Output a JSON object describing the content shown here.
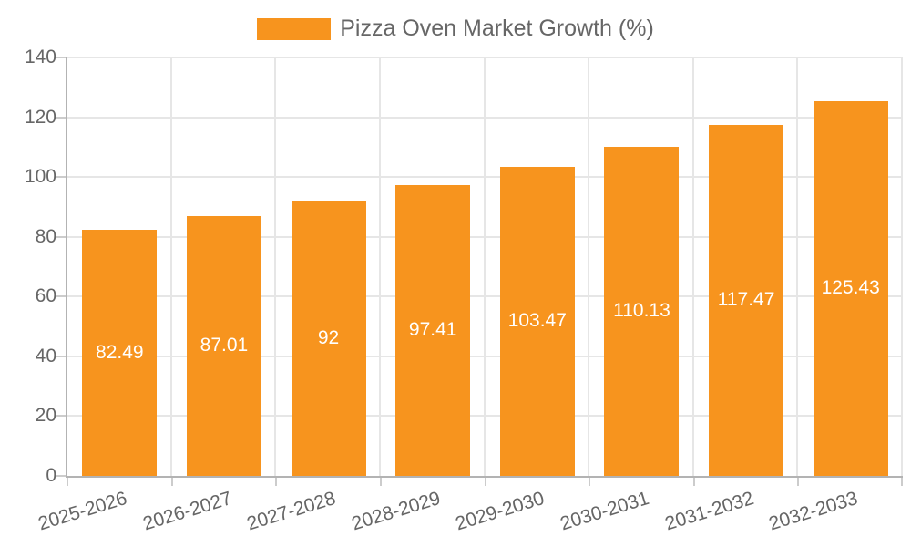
{
  "chart_data": {
    "type": "bar",
    "title": "Pizza Oven Market Growth (%)",
    "categories": [
      "2025-2026",
      "2026-2027",
      "2027-2028",
      "2028-2029",
      "2029-2030",
      "2030-2031",
      "2031-2032",
      "2032-2033"
    ],
    "values": [
      82.49,
      87.01,
      92,
      97.41,
      103.47,
      110.13,
      117.47,
      125.43
    ],
    "value_labels": [
      "82.49",
      "87.01",
      "92",
      "97.41",
      "103.47",
      "110.13",
      "117.47",
      "125.43"
    ],
    "yticks": [
      0,
      20,
      40,
      60,
      80,
      100,
      120,
      140
    ],
    "ylim": [
      0,
      140
    ],
    "xlabel": "",
    "ylabel": "",
    "grid": true,
    "legend_position": "top-center",
    "value_label_position": "inside-middle"
  },
  "colors": {
    "bar": "#f7941e",
    "grid": "#e6e6e6",
    "axis": "#b3b3b3",
    "tick": "#cccccc",
    "axis_text": "#666666",
    "value_text": "#ffffff",
    "legend_text": "#666666",
    "background": "#ffffff"
  },
  "legend": {
    "label": "Pizza Oven Market Growth (%)"
  }
}
